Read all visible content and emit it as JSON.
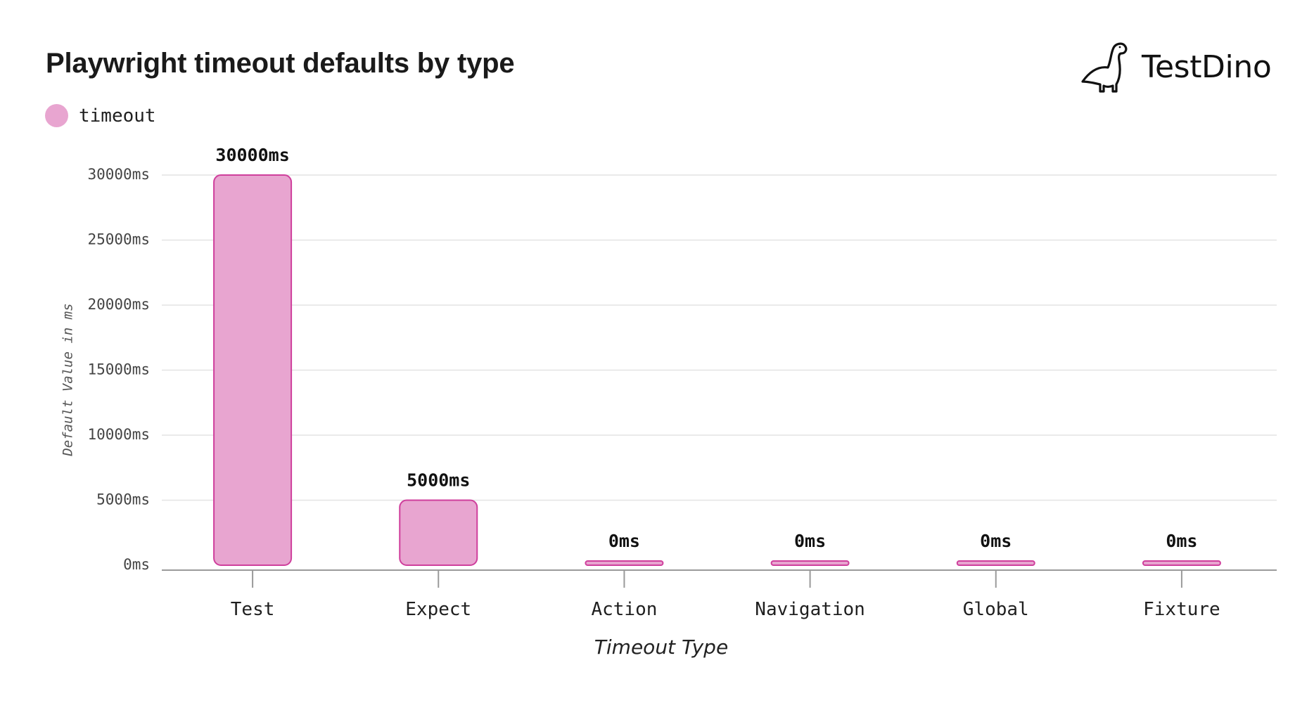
{
  "header": {
    "title": "Playwright timeout defaults by type"
  },
  "brand": {
    "name": "TestDino",
    "icon": "dino-icon"
  },
  "colors": {
    "bar_fill": "#e8a5d0",
    "bar_stroke": "#cf3f9c"
  },
  "chart_data": {
    "type": "bar",
    "title": "Playwright timeout defaults by type",
    "xlabel": "Timeout Type",
    "ylabel": "Default Value in ms",
    "categories": [
      "Test",
      "Expect",
      "Action",
      "Navigation",
      "Global",
      "Fixture"
    ],
    "series": [
      {
        "name": "timeout",
        "values": [
          30000,
          5000,
          0,
          0,
          0,
          0
        ],
        "value_labels": [
          "30000ms",
          "5000ms",
          "0ms",
          "0ms",
          "0ms",
          "0ms"
        ]
      }
    ],
    "ylim": [
      0,
      30000
    ],
    "yticks": [
      0,
      5000,
      10000,
      15000,
      20000,
      25000,
      30000
    ],
    "ytick_labels": [
      "0ms",
      "5000ms",
      "10000ms",
      "15000ms",
      "20000ms",
      "25000ms",
      "30000ms"
    ],
    "grid": true,
    "legend": "top-left"
  }
}
